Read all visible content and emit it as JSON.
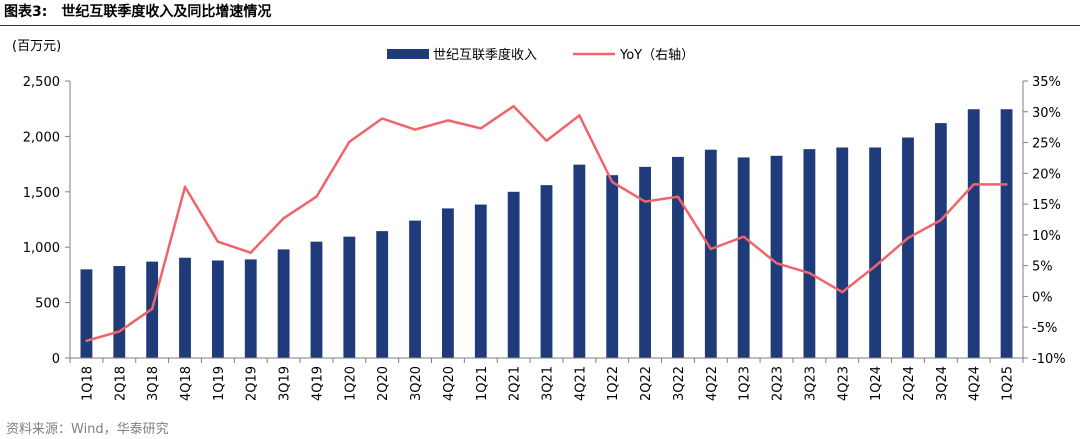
{
  "header": {
    "figure_no": "图表3:",
    "title": "世纪互联季度收入及同比增速情况"
  },
  "source": "资料来源：Wind，华泰研究",
  "chart_data": {
    "type": "bar",
    "y_unit_label": "(百万元)",
    "categories": [
      "1Q18",
      "2Q18",
      "3Q18",
      "4Q18",
      "1Q19",
      "2Q19",
      "3Q19",
      "4Q19",
      "1Q20",
      "2Q20",
      "3Q20",
      "4Q20",
      "1Q21",
      "2Q21",
      "3Q21",
      "4Q21",
      "1Q22",
      "2Q22",
      "3Q22",
      "4Q22",
      "1Q23",
      "2Q23",
      "3Q23",
      "4Q23",
      "1Q24",
      "2Q24",
      "3Q24",
      "4Q24",
      "1Q25"
    ],
    "series": [
      {
        "name": "世纪互联季度收入",
        "type": "bar",
        "axis": "left",
        "color": "#1f3b7a",
        "values": [
          800,
          830,
          870,
          905,
          880,
          890,
          980,
          1050,
          1095,
          1145,
          1240,
          1350,
          1385,
          1500,
          1560,
          1745,
          1650,
          1725,
          1815,
          1880,
          1810,
          1825,
          1885,
          1900,
          1900,
          1990,
          2120,
          2245,
          2245
        ]
      },
      {
        "name": "YoY（右轴）",
        "type": "line",
        "axis": "right",
        "color": "#f0646b",
        "values": [
          -7.2,
          -5.7,
          -2.0,
          17.8,
          8.9,
          7.1,
          12.7,
          16.2,
          25.1,
          28.9,
          27.1,
          28.6,
          27.3,
          30.9,
          25.3,
          29.4,
          18.6,
          15.4,
          16.2,
          7.7,
          9.7,
          5.4,
          3.8,
          0.7,
          4.9,
          9.5,
          12.4,
          18.2,
          18.2
        ]
      }
    ],
    "y_left": {
      "min": 0,
      "max": 2500,
      "ticks": [
        0,
        500,
        1000,
        1500,
        2000,
        2500
      ],
      "tick_labels": [
        "0",
        "500",
        "1,000",
        "1,500",
        "2,000",
        "2,500"
      ]
    },
    "y_right": {
      "min": -10,
      "max": 35,
      "ticks": [
        -10,
        -5,
        0,
        5,
        10,
        15,
        20,
        25,
        30,
        35
      ],
      "tick_labels": [
        "-10%",
        "-5%",
        "0%",
        "5%",
        "10%",
        "15%",
        "20%",
        "25%",
        "30%",
        "35%"
      ]
    },
    "grid": false,
    "legend_position": "top-center"
  }
}
